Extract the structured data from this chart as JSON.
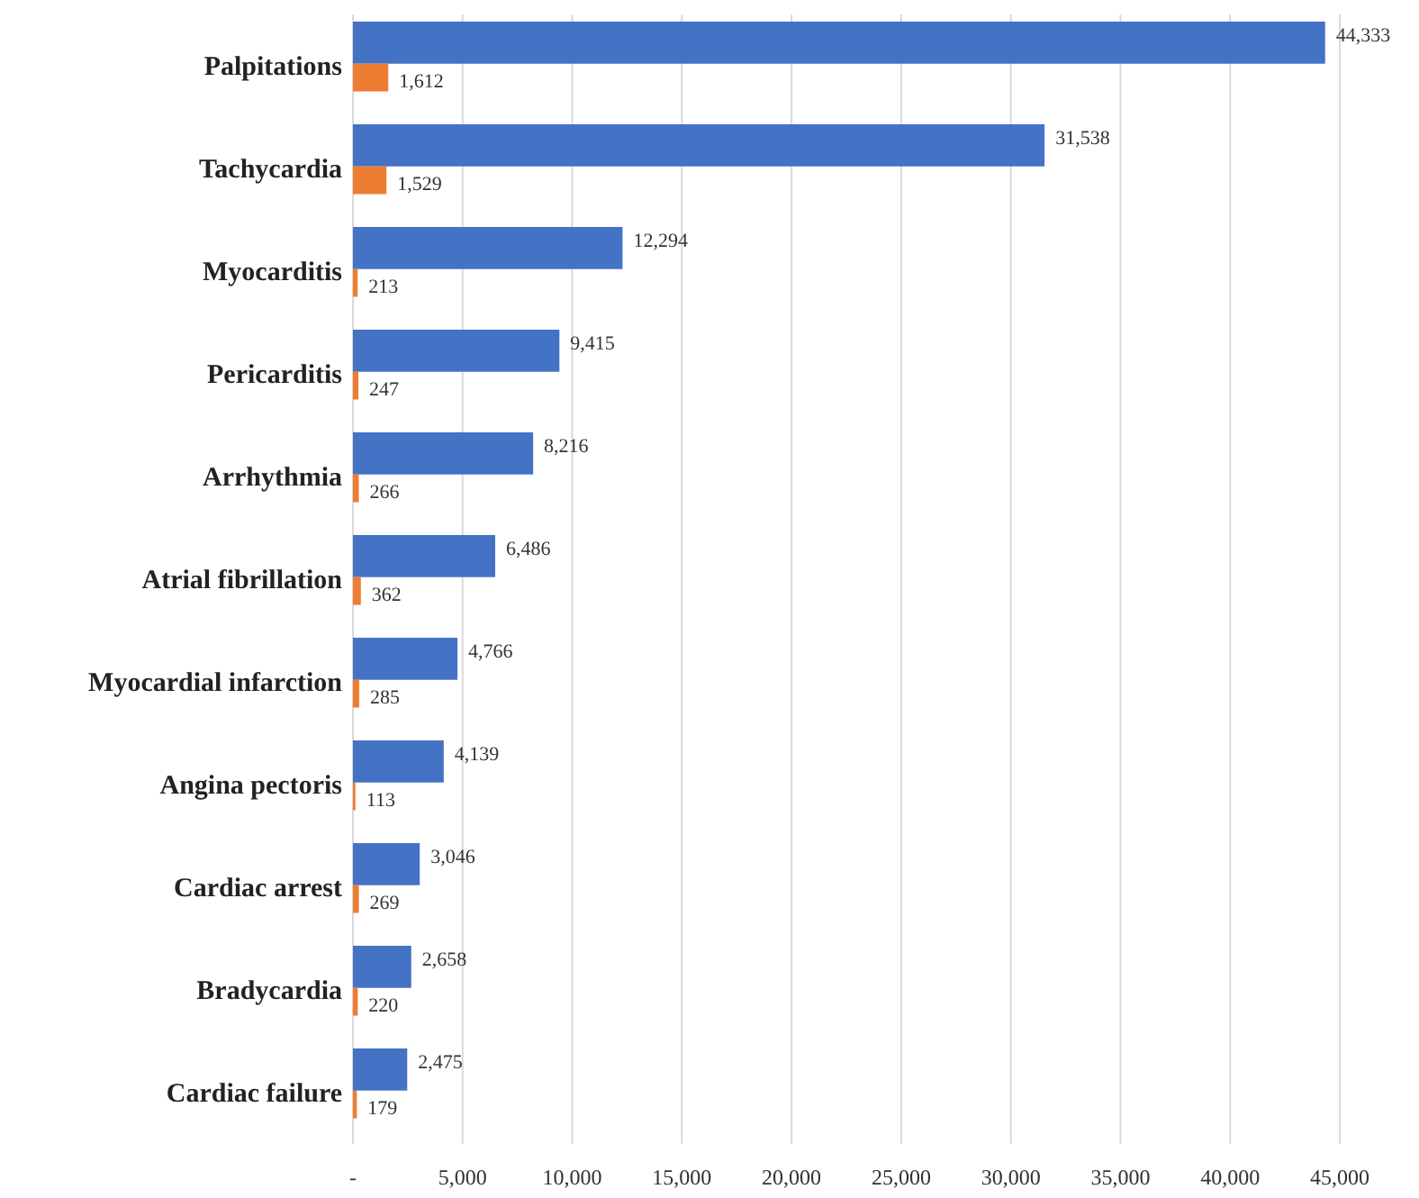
{
  "chart_data": {
    "type": "bar",
    "orientation": "horizontal",
    "categories": [
      "Palpitations",
      "Tachycardia",
      "Myocarditis",
      "Pericarditis",
      "Arrhythmia",
      "Atrial fibrillation",
      "Myocardial infarction",
      "Angina pectoris",
      "Cardiac arrest",
      "Bradycardia",
      "Cardiac failure"
    ],
    "series": [
      {
        "color": "#4472c4",
        "values": [
          44333,
          31538,
          12294,
          9415,
          8216,
          6486,
          4766,
          4139,
          3046,
          2658,
          2475
        ],
        "value_labels": [
          "44,333",
          "31,538",
          "12,294",
          "9,415",
          "8,216",
          "6,486",
          "4,766",
          "4,139",
          "3,046",
          "2,658",
          "2,475"
        ]
      },
      {
        "color": "#ed7d31",
        "values": [
          1612,
          1529,
          213,
          247,
          266,
          362,
          285,
          113,
          269,
          220,
          179
        ],
        "value_labels": [
          "1,612",
          "1,529",
          "213",
          "247",
          "266",
          "362",
          "285",
          "113",
          "269",
          "220",
          "179"
        ]
      }
    ],
    "xlim": [
      0,
      45000
    ],
    "xticks": [
      {
        "value": 0,
        "label": "-"
      },
      {
        "value": 5000,
        "label": "5,000"
      },
      {
        "value": 10000,
        "label": "10,000"
      },
      {
        "value": 15000,
        "label": "15,000"
      },
      {
        "value": 20000,
        "label": "20,000"
      },
      {
        "value": 25000,
        "label": "25,000"
      },
      {
        "value": 30000,
        "label": "30,000"
      },
      {
        "value": 35000,
        "label": "35,000"
      },
      {
        "value": 40000,
        "label": "40,000"
      },
      {
        "value": 45000,
        "label": "45,000"
      }
    ],
    "grid": "x"
  }
}
